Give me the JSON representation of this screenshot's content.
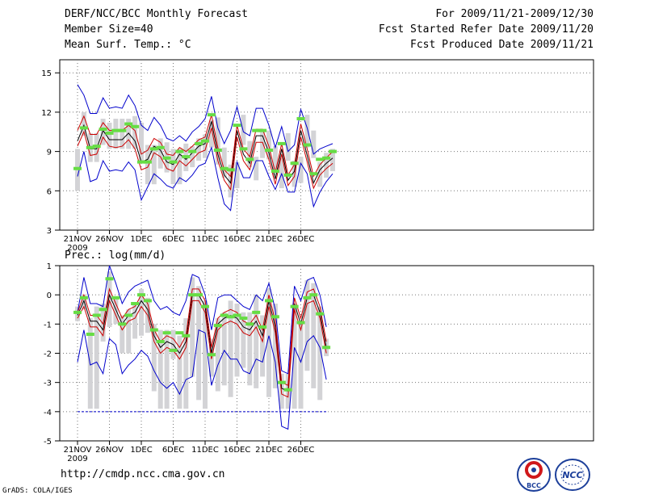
{
  "header": {
    "title": "DERF/NCC/BCC Monthly Forecast",
    "member_size": "Member Size=40",
    "period": "For 2009/11/21-2009/12/30",
    "fcst_started": "Fcst Started Refer Date 2009/11/20",
    "fcst_produced": "Fcst Produced Date 2009/11/21"
  },
  "footer": {
    "url": "http://cmdp.ncc.cma.gov.cn",
    "grads": "GrADS: COLA/IGES"
  },
  "logos": {
    "bcc_text": "BCC",
    "ncc_text": "NCC"
  },
  "colors": {
    "mean": "#000000",
    "upper": "#0000cc",
    "lower": "#cc0000",
    "bar": "#d3d3d6",
    "obs": "#66dd44"
  },
  "chart_data": [
    {
      "type": "line",
      "title": "Mean Surf. Temp.: °C",
      "x_tick_labels": [
        "21NOV",
        "26NOV",
        "1DEC",
        "6DEC",
        "11DEC",
        "16DEC",
        "21DEC",
        "26DEC"
      ],
      "x_year_label": "2009",
      "ylim": [
        3,
        16
      ],
      "y_ticks": [
        3,
        6,
        9,
        12,
        15
      ],
      "bar_range": [
        [
          6,
          9.2
        ],
        [
          10.2,
          12
        ],
        [
          8.2,
          10.4
        ],
        [
          8.2,
          10.4
        ],
        [
          9.5,
          11.5
        ],
        [
          9.2,
          11.2
        ],
        [
          9.2,
          11.5
        ],
        [
          9.2,
          11.5
        ],
        [
          9.2,
          11.5
        ],
        [
          9.2,
          11.7
        ],
        [
          8.2,
          11.2
        ],
        [
          6.5,
          9.5
        ],
        [
          6.5,
          9.5
        ],
        [
          7.7,
          10
        ],
        [
          7.4,
          9.7
        ],
        [
          6.5,
          9.2
        ],
        [
          6.5,
          9.2
        ],
        [
          7.5,
          9.6
        ],
        [
          7.8,
          9.4
        ],
        [
          8.3,
          10
        ],
        [
          8.5,
          10.3
        ],
        [
          9.3,
          11.4
        ],
        [
          8,
          11.6
        ],
        [
          7,
          9.3
        ],
        [
          5.5,
          8
        ],
        [
          6.2,
          8.2
        ],
        [
          9.5,
          11.8
        ],
        [
          7.8,
          9.8
        ],
        [
          6.8,
          8.6
        ],
        [
          8.5,
          10.6
        ],
        [
          8.4,
          10.6
        ],
        [
          7.2,
          9.4
        ],
        [
          6.2,
          8.5
        ],
        [
          8.3,
          10.4
        ],
        [
          6.3,
          8.3
        ],
        [
          6.6,
          8.6
        ],
        [
          9.3,
          11.8
        ],
        [
          8.5,
          10.6
        ],
        [
          6.3,
          8.2
        ],
        [
          7,
          8.9
        ],
        [
          7.5,
          9.2
        ]
      ],
      "series": [
        {
          "name": "mean",
          "values": [
            9.8,
            11,
            9.2,
            9.2,
            10.6,
            9.9,
            9.9,
            9.9,
            10.4,
            9.8,
            8.2,
            8.4,
            9.4,
            9.1,
            8.2,
            8,
            8.8,
            8.4,
            8.9,
            9.4,
            9.6,
            11.3,
            8.8,
            7.2,
            6.6,
            10.6,
            8.8,
            8.1,
            10.2,
            10.2,
            8.9,
            6.9,
            9.2,
            6.8,
            7.5,
            10.6,
            8.7,
            6.6,
            7.6,
            8.1,
            8.5
          ]
        },
        {
          "name": "upper",
          "values": [
            14.1,
            13.3,
            11.9,
            11.9,
            13.1,
            12.3,
            12.4,
            12.3,
            13.3,
            12.5,
            11,
            10.6,
            11.6,
            11,
            10,
            9.8,
            10.2,
            9.8,
            10.5,
            10.9,
            11.5,
            13.2,
            10.8,
            9.6,
            10.6,
            12.4,
            10.5,
            10.2,
            12.3,
            12.3,
            11,
            9.3,
            10.9,
            9,
            9.5,
            12.2,
            10.8,
            8.8,
            9.2,
            9.4,
            9.6
          ]
        },
        {
          "name": "lower",
          "values": [
            7.1,
            9,
            6.7,
            6.9,
            8.3,
            7.5,
            7.6,
            7.5,
            8.2,
            7.6,
            5.3,
            6.3,
            7.3,
            6.9,
            6.4,
            6.2,
            7,
            6.7,
            7.2,
            7.9,
            8.1,
            9.3,
            7,
            5,
            4.5,
            8.2,
            7,
            7,
            8.3,
            8.3,
            7.1,
            6.1,
            7.3,
            5.9,
            5.9,
            8.1,
            7.3,
            4.8,
            5.9,
            6.7,
            7.3
          ]
        },
        {
          "name": "upper_red",
          "values": [
            10.6,
            11.7,
            10.3,
            10.3,
            11.2,
            10.6,
            10.6,
            10.6,
            11,
            10.6,
            8.8,
            9.1,
            10,
            9.7,
            8.8,
            8.7,
            9.3,
            9,
            9.4,
            9.9,
            10.1,
            11.8,
            9.3,
            7.6,
            7.1,
            11,
            9.2,
            8.6,
            10.7,
            10.7,
            9.4,
            7.4,
            9.6,
            7.2,
            8,
            11.1,
            9.2,
            7.1,
            8,
            8.5,
            9
          ]
        },
        {
          "name": "lower_red",
          "values": [
            9.4,
            10.5,
            8.7,
            8.8,
            10.1,
            9.4,
            9.3,
            9.4,
            9.9,
            9.2,
            7.6,
            7.8,
            8.9,
            8.6,
            7.7,
            7.5,
            8.3,
            7.9,
            8.4,
            8.9,
            9.1,
            10.8,
            8.3,
            6.8,
            6.1,
            10.1,
            8.3,
            7.6,
            9.7,
            9.7,
            8.4,
            6.5,
            8.8,
            6.4,
            7.1,
            10.1,
            8.2,
            6.2,
            7.2,
            7.7,
            8.1
          ]
        }
      ],
      "observed": [
        7.7,
        10.8,
        9.3,
        9.4,
        10.7,
        10.4,
        10.6,
        10.6,
        11.1,
        10.9,
        8.2,
        8.2,
        9.2,
        9.3,
        8.5,
        8.2,
        9,
        8.6,
        9,
        9.6,
        9.8,
        11.8,
        9.1,
        7.7,
        7.6,
        11,
        9.2,
        8.4,
        10.6,
        10.6,
        9.1,
        7.5,
        9.6,
        7.2,
        8.1,
        11.5,
        9.5,
        7.3,
        8.4,
        8.5,
        9
      ]
    },
    {
      "type": "line",
      "title": "Prec.: log(mm/d)",
      "x_tick_labels": [
        "21NOV",
        "26NOV",
        "1DEC",
        "6DEC",
        "11DEC",
        "16DEC",
        "21DEC",
        "26DEC"
      ],
      "x_year_label": "2009",
      "ylim": [
        -5,
        1
      ],
      "y_ticks": [
        -5,
        -4,
        -3,
        -2,
        -1,
        0,
        1
      ],
      "baseline": -4,
      "bar_range": [
        [
          -0.9,
          -0.4
        ],
        [
          -0.5,
          0
        ],
        [
          -3.9,
          -0.8
        ],
        [
          -3.9,
          -0.4
        ],
        [
          -1.6,
          -0.3
        ],
        [
          -1.1,
          0.8
        ],
        [
          -1,
          -0.1
        ],
        [
          -2,
          -0.7
        ],
        [
          -2,
          -0.5
        ],
        [
          -1.5,
          -0.3
        ],
        [
          -1.4,
          0.2
        ],
        [
          -1.3,
          -0.1
        ],
        [
          -3.3,
          -1
        ],
        [
          -3.9,
          -1.2
        ],
        [
          -3.9,
          -1.2
        ],
        [
          -2.2,
          -1.2
        ],
        [
          -3.9,
          -1.4
        ],
        [
          -3.9,
          -0.8
        ],
        [
          -2.8,
          0.6
        ],
        [
          -3.6,
          0.3
        ],
        [
          -3.9,
          -0.2
        ],
        [
          -2.8,
          -1.5
        ],
        [
          -3.3,
          -0.8
        ],
        [
          -3.1,
          -0.6
        ],
        [
          -3.5,
          -0.2
        ],
        [
          -2.8,
          -0.3
        ],
        [
          -2.5,
          -0.6
        ],
        [
          -3.1,
          -0.6
        ],
        [
          -3.2,
          0
        ],
        [
          -2.8,
          -0.7
        ],
        [
          -3.5,
          0.2
        ],
        [
          -3.2,
          -0.3
        ],
        [
          -3.9,
          -2.7
        ],
        [
          -3.9,
          -2.7
        ],
        [
          -3.9,
          -0.3
        ],
        [
          -3.9,
          -0.9
        ],
        [
          -2.6,
          0.5
        ],
        [
          -3.2,
          0.4
        ],
        [
          -3.6,
          -0.4
        ],
        [
          -2.1,
          -1.5
        ]
      ],
      "series": [
        {
          "name": "mean",
          "values": [
            -0.7,
            -0.2,
            -0.9,
            -0.9,
            -1.2,
            0,
            -0.5,
            -1,
            -0.7,
            -0.6,
            -0.2,
            -0.5,
            -1.4,
            -1.8,
            -1.6,
            -1.7,
            -2,
            -1.6,
            0,
            0,
            -0.4,
            -2,
            -1,
            -0.8,
            -0.7,
            -0.8,
            -1.1,
            -1.2,
            -0.9,
            -1.4,
            -0.2,
            -1.1,
            -3.2,
            -3.3,
            -0.3,
            -1,
            -0.1,
            0,
            -0.6,
            -1.8
          ]
        },
        {
          "name": "upper",
          "values": [
            -0.6,
            0.6,
            -0.3,
            -0.3,
            -0.4,
            1,
            0.4,
            -0.3,
            0.1,
            0.3,
            0.4,
            0.5,
            -0.2,
            -0.5,
            -0.4,
            -0.6,
            -0.7,
            -0.2,
            0.7,
            0.6,
            0,
            -1.2,
            -0.1,
            0,
            0,
            -0.2,
            -0.4,
            -0.5,
            0,
            -0.2,
            0.4,
            -0.5,
            -2.6,
            -2.7,
            0.3,
            -0.2,
            0.5,
            0.6,
            0,
            -1.1
          ]
        },
        {
          "name": "lower",
          "values": [
            -2.3,
            -1.2,
            -2.4,
            -2.3,
            -2.7,
            -1.5,
            -1.7,
            -2.7,
            -2.4,
            -2.2,
            -1.9,
            -2.1,
            -2.6,
            -3,
            -3.2,
            -3,
            -3.4,
            -2.9,
            -2.8,
            -1.2,
            -1.3,
            -3.1,
            -2.4,
            -1.9,
            -2.2,
            -2.2,
            -2.6,
            -2.7,
            -2.2,
            -2.3,
            -1.4,
            -2.3,
            -4.5,
            -4.6,
            -1.8,
            -2.3,
            -1.6,
            -1.4,
            -1.8,
            -2.9
          ]
        },
        {
          "name": "upper_red",
          "values": [
            -0.6,
            0,
            -0.7,
            -0.7,
            -1,
            0.2,
            -0.3,
            -0.8,
            -0.5,
            -0.4,
            0,
            -0.3,
            -1.2,
            -1.6,
            -1.4,
            -1.5,
            -1.8,
            -1.4,
            0.2,
            0.2,
            -0.2,
            -1.8,
            -0.8,
            -0.6,
            -0.5,
            -0.6,
            -0.9,
            -1,
            -0.7,
            -1.2,
            0,
            -0.9,
            -3,
            -3.1,
            -0.1,
            -0.8,
            0.1,
            0.2,
            -0.4,
            -1.6
          ]
        },
        {
          "name": "lower_red",
          "values": [
            -0.8,
            -0.4,
            -1.1,
            -1.1,
            -1.4,
            -0.2,
            -0.7,
            -1.2,
            -0.9,
            -0.8,
            -0.4,
            -0.7,
            -1.6,
            -2,
            -1.8,
            -1.9,
            -2.2,
            -1.8,
            -0.2,
            -0.2,
            -0.6,
            -2.2,
            -1.2,
            -1,
            -0.9,
            -1,
            -1.3,
            -1.4,
            -1.1,
            -1.6,
            -0.4,
            -1.3,
            -3.4,
            -3.5,
            -0.5,
            -1.2,
            -0.3,
            -0.2,
            -0.8,
            -2
          ]
        }
      ],
      "observed": [
        -0.6,
        -0.1,
        -1.35,
        -0.7,
        -0.5,
        0.55,
        -0.1,
        -1,
        -0.7,
        -0.3,
        0,
        -0.2,
        -1.2,
        -1.6,
        -1.3,
        -1.9,
        -1.3,
        -1.4,
        0,
        0,
        -0.4,
        -2.05,
        -1.05,
        -0.7,
        -0.75,
        -0.7,
        -0.8,
        -1,
        -0.6,
        -1.1,
        -0.2,
        -0.75,
        -3,
        -3.25,
        -0.4,
        -0.95,
        -0.1,
        0,
        -0.65,
        -1.8
      ]
    }
  ]
}
